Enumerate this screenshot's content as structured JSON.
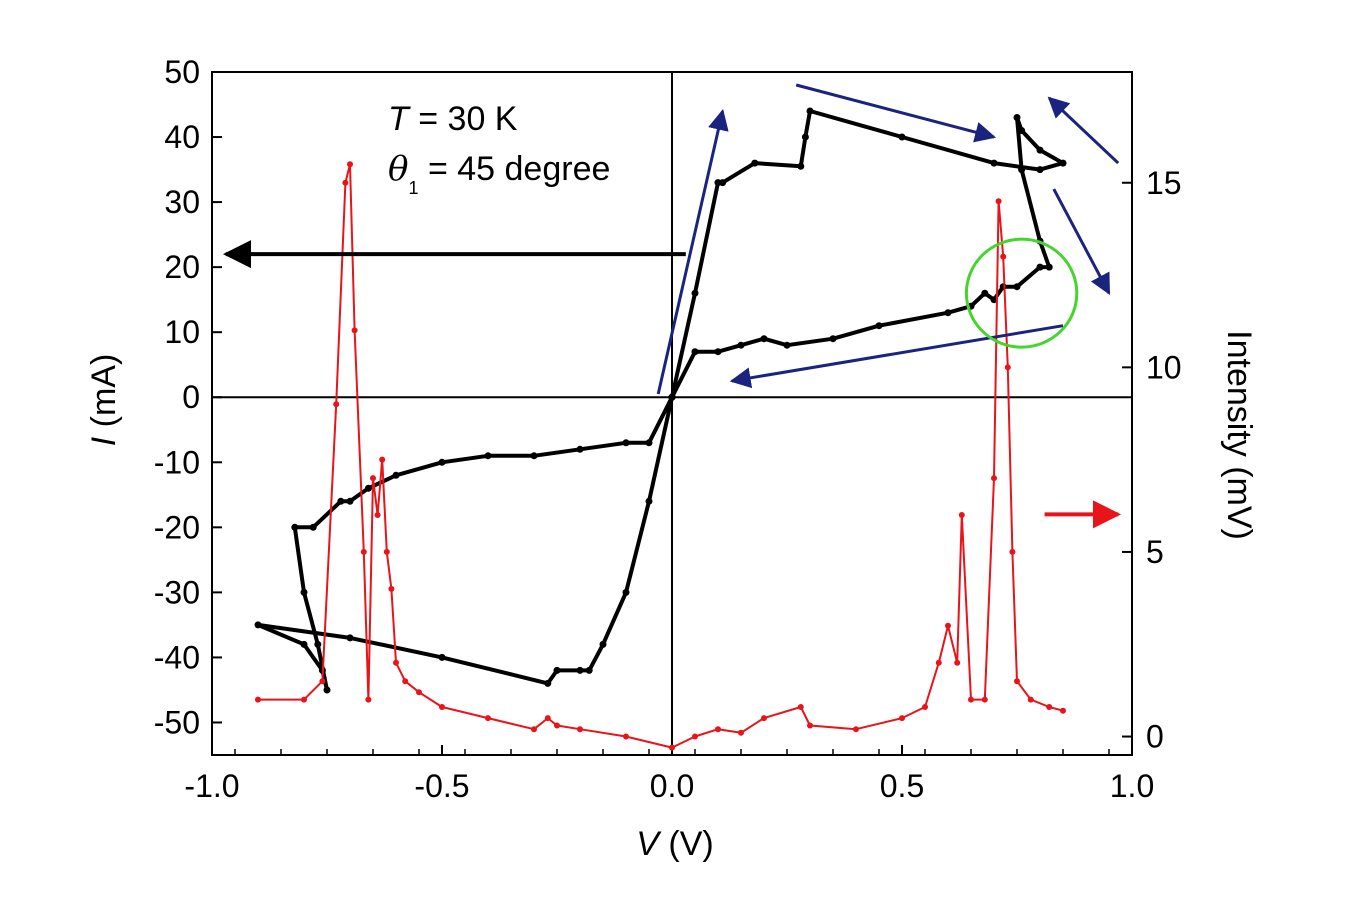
{
  "chart_data": {
    "type": "line",
    "xlabel": {
      "symbol": "V",
      "unit": " (V)"
    },
    "ylabel_left": {
      "symbol": "I",
      "unit": " (mA)"
    },
    "ylabel_right": "Intensity (mV)",
    "xlim": [
      -1.0,
      1.0
    ],
    "ylim_left": [
      -55,
      50
    ],
    "ylim_right": [
      -0.5,
      18
    ],
    "x_ticks": [
      -1.0,
      -0.5,
      0.0,
      0.5,
      1.0
    ],
    "x_tick_labels": [
      "-1.0",
      "-0.5",
      "0.0",
      "0.5",
      "1.0"
    ],
    "y_left_ticks": [
      -50,
      -40,
      -30,
      -20,
      -10,
      0,
      10,
      20,
      30,
      40,
      50
    ],
    "y_left_tick_labels": [
      "-50",
      "-40",
      "-30",
      "-20",
      "-10",
      "0",
      "10",
      "20",
      "30",
      "40",
      "50"
    ],
    "y_right_ticks": [
      0,
      5,
      10,
      15
    ],
    "y_right_tick_labels": [
      "0",
      "5",
      "10",
      "15"
    ],
    "annotations": {
      "temperature": {
        "symbol": "T",
        "text": " = 30 K"
      },
      "angle": {
        "symbol": "θ",
        "subscript": "1",
        "text": " = 45 degree"
      }
    },
    "colors": {
      "iv": "#000000",
      "intensity": "#e8141a",
      "arrows": "#1a237e",
      "circle": "#44d62c"
    },
    "series": [
      {
        "axis": "left",
        "color": "#000000",
        "x": [
          0.0,
          0.05,
          0.1,
          0.11,
          0.18,
          0.28,
          0.29,
          0.3,
          0.5,
          0.7,
          0.8,
          0.85,
          0.8,
          0.76,
          0.75,
          0.76,
          0.8,
          0.82,
          0.8,
          0.75,
          0.72,
          0.7,
          0.68,
          0.65,
          0.6,
          0.45,
          0.35,
          0.25,
          0.2,
          0.15,
          0.1,
          0.05,
          0.0
        ],
        "y": [
          0,
          16,
          33,
          33,
          36,
          35.5,
          40,
          44,
          40,
          36,
          35,
          36,
          38,
          41,
          43,
          35,
          24,
          20,
          20,
          17,
          17,
          15,
          16,
          14,
          13,
          11,
          9,
          8,
          9,
          8,
          7,
          7,
          0
        ]
      },
      {
        "axis": "left",
        "color": "#000000",
        "x": [
          0.0,
          -0.05,
          -0.1,
          -0.15,
          -0.18,
          -0.2,
          -0.25,
          -0.27,
          -0.5,
          -0.7,
          -0.9,
          -0.8,
          -0.76,
          -0.75,
          -0.77,
          -0.8,
          -0.82,
          -0.78,
          -0.72,
          -0.7,
          -0.66,
          -0.6,
          -0.5,
          -0.4,
          -0.3,
          -0.2,
          -0.1,
          -0.05,
          0.0
        ],
        "y": [
          0,
          -16,
          -30,
          -38,
          -42,
          -42,
          -42,
          -44,
          -40,
          -37,
          -35,
          -38,
          -42,
          -45,
          -38,
          -30,
          -20,
          -20,
          -16,
          -16,
          -14,
          -12,
          -10,
          -9,
          -9,
          -8,
          -7,
          -7,
          0
        ]
      },
      {
        "axis": "right",
        "color": "#e8141a",
        "x": [
          -0.9,
          -0.8,
          -0.76,
          -0.73,
          -0.71,
          -0.7,
          -0.69,
          -0.67,
          -0.66,
          -0.65,
          -0.64,
          -0.63,
          -0.62,
          -0.61,
          -0.6,
          -0.58,
          -0.55,
          -0.5,
          -0.4,
          -0.3,
          -0.27,
          -0.25,
          -0.2,
          -0.1,
          0.0,
          0.05,
          0.1,
          0.15,
          0.2,
          0.28,
          0.3,
          0.4,
          0.5,
          0.55,
          0.58,
          0.6,
          0.62,
          0.63,
          0.65,
          0.68,
          0.7,
          0.71,
          0.72,
          0.73,
          0.74,
          0.75,
          0.78,
          0.82,
          0.85
        ],
        "y": [
          1,
          1,
          1.5,
          9,
          15,
          15.5,
          11,
          5,
          1,
          7,
          6,
          7.5,
          5,
          4,
          2,
          1.5,
          1.2,
          0.8,
          0.5,
          0.2,
          0.5,
          0.3,
          0.2,
          0,
          -0.3,
          0,
          0.2,
          0.1,
          0.5,
          0.8,
          0.3,
          0.2,
          0.5,
          0.8,
          2,
          3,
          2,
          6,
          1,
          1,
          7,
          14.5,
          13,
          10,
          5,
          1.5,
          1,
          0.8,
          0.7
        ]
      }
    ],
    "guide_arrows": [
      {
        "from": [
          -0.03,
          0.5
        ],
        "to": [
          0.11,
          44
        ],
        "axis": "left"
      },
      {
        "from": [
          0.27,
          48
        ],
        "to": [
          0.7,
          40
        ],
        "axis": "left"
      },
      {
        "from": [
          0.97,
          36
        ],
        "to": [
          0.82,
          46
        ],
        "axis": "left"
      },
      {
        "from": [
          0.83,
          32
        ],
        "to": [
          0.95,
          16
        ],
        "axis": "left"
      },
      {
        "from": [
          0.85,
          11
        ],
        "to": [
          0.13,
          2.5
        ],
        "axis": "left"
      }
    ],
    "axis_arrows": [
      {
        "from": [
          0.03,
          22
        ],
        "to": [
          -0.97,
          22
        ],
        "axis": "left",
        "color": "#000000"
      },
      {
        "from": [
          0.81,
          -18
        ],
        "to": [
          0.97,
          -18
        ],
        "axis": "left",
        "color": "#e8141a"
      }
    ],
    "circle": {
      "center": [
        0.76,
        16
      ],
      "radius_x": 0.12,
      "radius_y": 8.3,
      "axis": "left"
    }
  }
}
